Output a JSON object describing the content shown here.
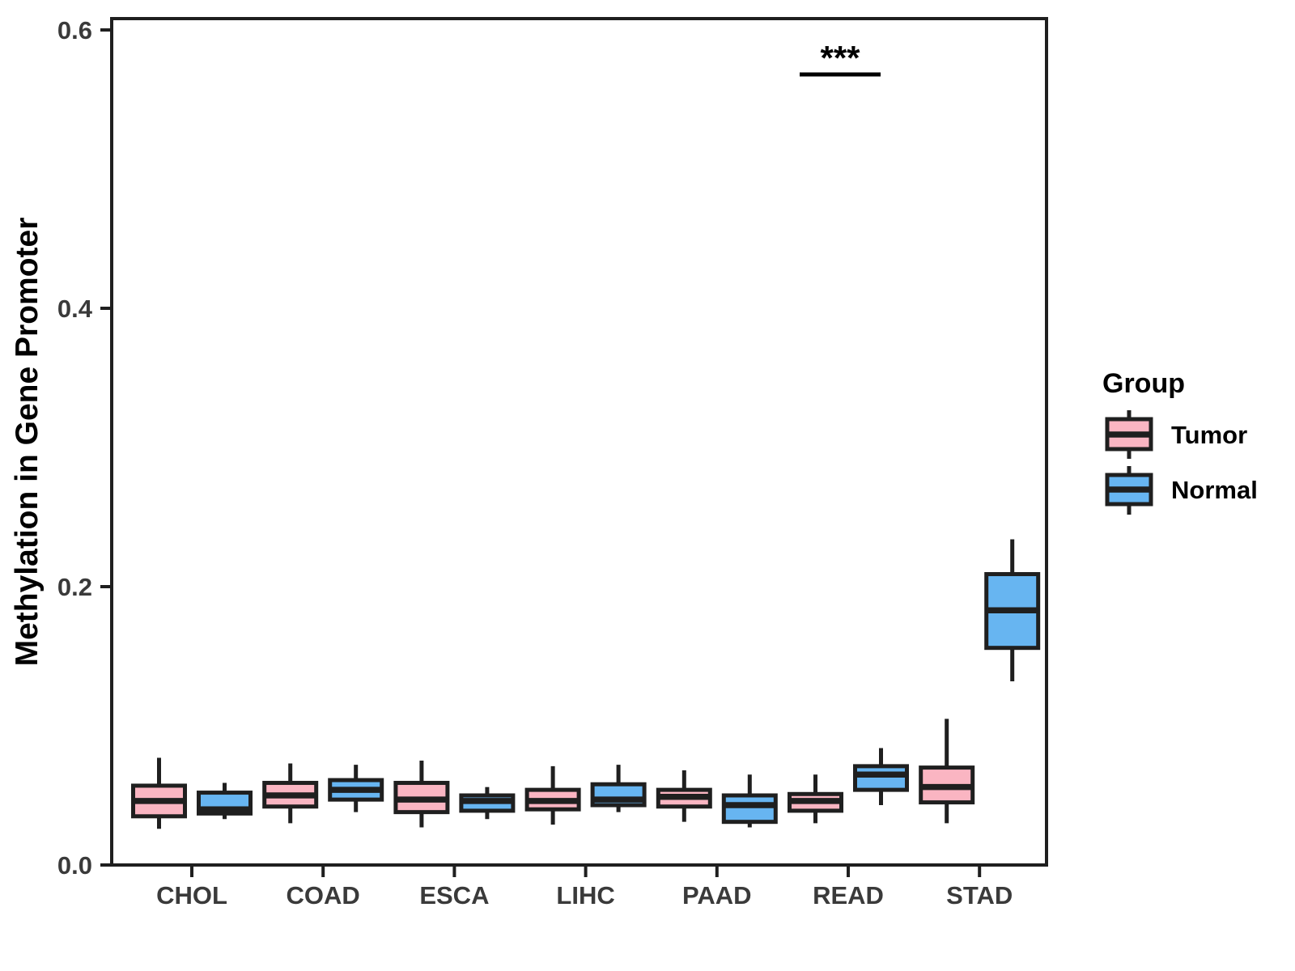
{
  "chart_data": {
    "type": "grouped_boxplot",
    "title": "",
    "ylabel": "Methylation in Gene Promoter",
    "xlabel": "",
    "legend_title": "Group",
    "legend_position": "right",
    "ylim": [
      0,
      0.6
    ],
    "yticks": [
      0,
      0.2,
      0.4,
      0.6
    ],
    "ytick_labels": [
      "0.0",
      "0.2",
      "0.4",
      "0.6"
    ],
    "categories": [
      "CHOL",
      "COAD",
      "ESCA",
      "LIHC",
      "PAAD",
      "READ",
      "STAD"
    ],
    "grid": "off",
    "outline_color": "#1f1f1f",
    "tick_text_color": "#3a3a3a",
    "series": [
      {
        "name": "Tumor",
        "fill": "#FAB5C2",
        "boxes": [
          {
            "whisker_low": 0.026,
            "q1": 0.035,
            "median": 0.046,
            "q3": 0.057,
            "whisker_high": 0.077
          },
          {
            "whisker_low": 0.03,
            "q1": 0.042,
            "median": 0.05,
            "q3": 0.059,
            "whisker_high": 0.073
          },
          {
            "whisker_low": 0.027,
            "q1": 0.038,
            "median": 0.047,
            "q3": 0.059,
            "whisker_high": 0.075
          },
          {
            "whisker_low": 0.029,
            "q1": 0.04,
            "median": 0.046,
            "q3": 0.054,
            "whisker_high": 0.071
          },
          {
            "whisker_low": 0.031,
            "q1": 0.042,
            "median": 0.049,
            "q3": 0.054,
            "whisker_high": 0.068
          },
          {
            "whisker_low": 0.03,
            "q1": 0.039,
            "median": 0.046,
            "q3": 0.051,
            "whisker_high": 0.065
          },
          {
            "whisker_low": 0.03,
            "q1": 0.045,
            "median": 0.056,
            "q3": 0.07,
            "whisker_high": 0.105
          }
        ]
      },
      {
        "name": "Normal",
        "fill": "#67B5F1",
        "boxes": [
          {
            "whisker_low": 0.033,
            "q1": 0.037,
            "median": 0.04,
            "q3": 0.052,
            "whisker_high": 0.059
          },
          {
            "whisker_low": 0.038,
            "q1": 0.047,
            "median": 0.054,
            "q3": 0.061,
            "whisker_high": 0.072
          },
          {
            "whisker_low": 0.033,
            "q1": 0.039,
            "median": 0.046,
            "q3": 0.05,
            "whisker_high": 0.056
          },
          {
            "whisker_low": 0.038,
            "q1": 0.043,
            "median": 0.047,
            "q3": 0.058,
            "whisker_high": 0.072
          },
          {
            "whisker_low": 0.027,
            "q1": 0.031,
            "median": 0.043,
            "q3": 0.05,
            "whisker_high": 0.065
          },
          {
            "whisker_low": 0.043,
            "q1": 0.054,
            "median": 0.065,
            "q3": 0.071,
            "whisker_high": 0.084
          },
          {
            "whisker_low": 0.132,
            "q1": 0.156,
            "median": 0.183,
            "q3": 0.209,
            "whisker_high": 0.234
          }
        ]
      }
    ],
    "annotations": [
      {
        "text": "***",
        "category": "READ",
        "category_index": 5,
        "y": 0.568
      }
    ]
  }
}
